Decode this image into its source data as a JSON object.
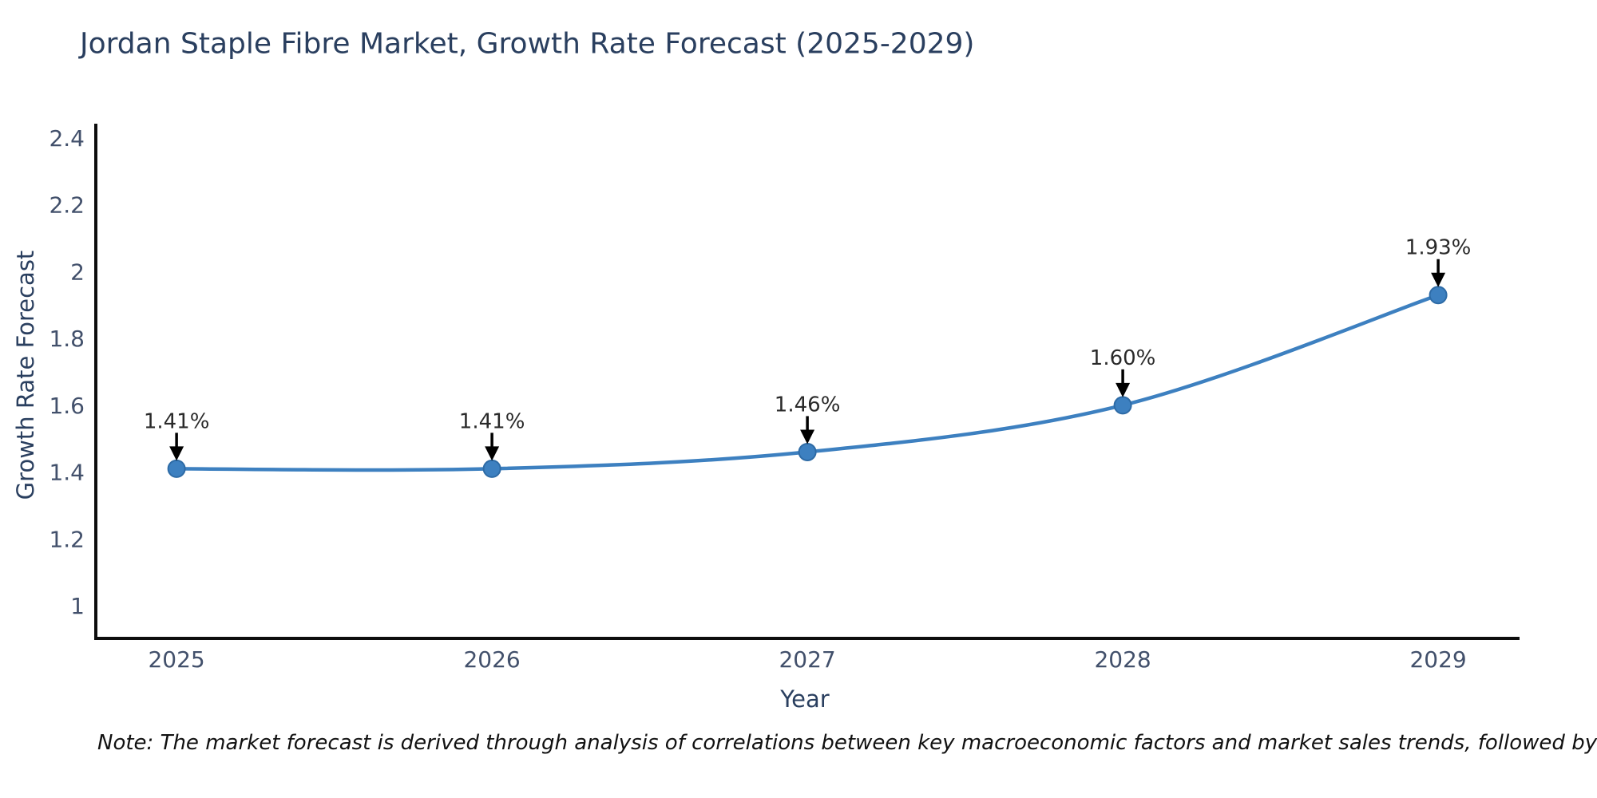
{
  "page": {
    "note": "Note: The market forecast is derived through analysis of correlations between key macroeconomic factors and market sales trends, followed by predictive modeling to project future sales"
  },
  "chart_data": {
    "type": "line",
    "title": "Jordan Staple Fibre Market, Growth Rate Forecast (2025-2029)",
    "xlabel": "Year",
    "ylabel": "Growth Rate Forecast",
    "x": [
      2025,
      2026,
      2027,
      2028,
      2029
    ],
    "y": [
      1.41,
      1.41,
      1.46,
      1.6,
      1.93
    ],
    "point_labels": [
      "1.41%",
      "1.41%",
      "1.46%",
      "1.60%",
      "1.93%"
    ],
    "x_tick_labels": [
      "2025",
      "2026",
      "2027",
      "2028",
      "2029"
    ],
    "y_tick_values": [
      1,
      1.2,
      1.4,
      1.6,
      1.8,
      2,
      2.2,
      2.4
    ],
    "y_tick_labels": [
      "1",
      "1.2",
      "1.4",
      "1.6",
      "1.8",
      "2",
      "2.2",
      "2.4"
    ],
    "xlim": [
      2024.744,
      2029.258
    ],
    "ylim": [
      0.902,
      2.443
    ],
    "grid": false,
    "legend": "none",
    "line_shape": "spline",
    "colors": {
      "line": "#3d80c0",
      "marker_fill": "#3d80c0",
      "marker_edge": "#2e6ba6",
      "axis_line": "#0d0d0d",
      "tick_label": "#42506b",
      "axis_title": "#2a3f5f",
      "title": "#2a3f5f",
      "annotation_text": "#2a2a2a",
      "annotation_arrow": "#000000",
      "background": "#ffffff"
    }
  }
}
